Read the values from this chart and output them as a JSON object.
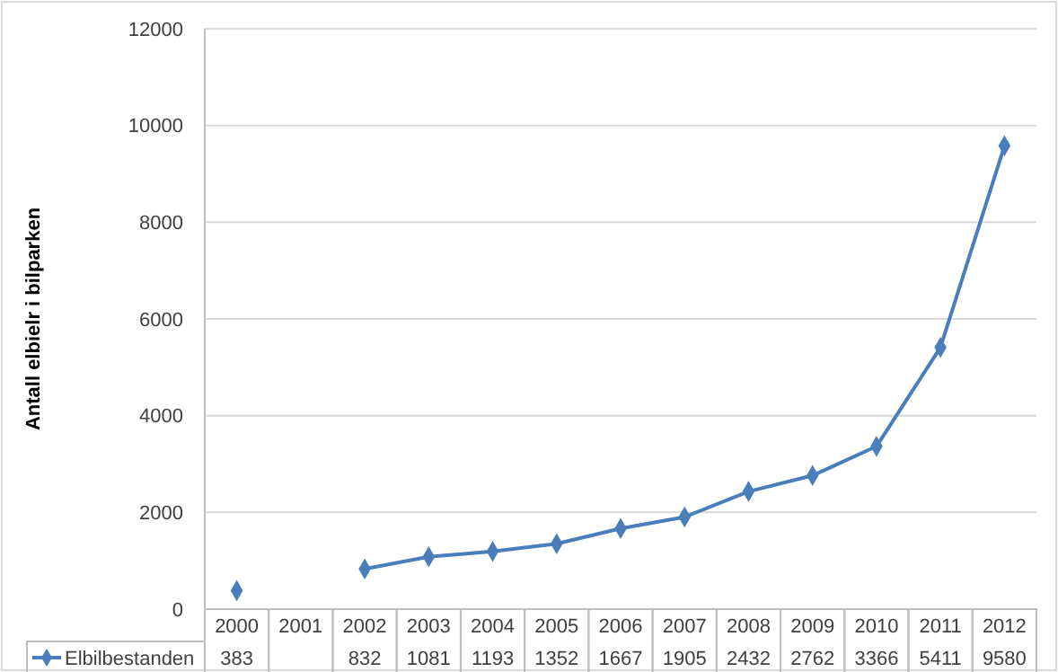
{
  "chart_data": {
    "type": "line",
    "ylabel": "Antall elbielr i bilparken",
    "categories": [
      "2000",
      "2001",
      "2002",
      "2003",
      "2004",
      "2005",
      "2006",
      "2007",
      "2008",
      "2009",
      "2010",
      "2011",
      "2012"
    ],
    "series": [
      {
        "name": "Elbilbestanden",
        "color": "#4a7ebb",
        "values": [
          383,
          null,
          832,
          1081,
          1193,
          1352,
          1667,
          1905,
          2432,
          2762,
          3366,
          5411,
          9580
        ]
      }
    ],
    "ylim": [
      0,
      12000
    ],
    "yticks": [
      0,
      2000,
      4000,
      6000,
      8000,
      10000,
      12000
    ],
    "grid": "y",
    "legend": "bottom",
    "marker": "diamond",
    "line_style": "solid",
    "data_labels": true
  }
}
